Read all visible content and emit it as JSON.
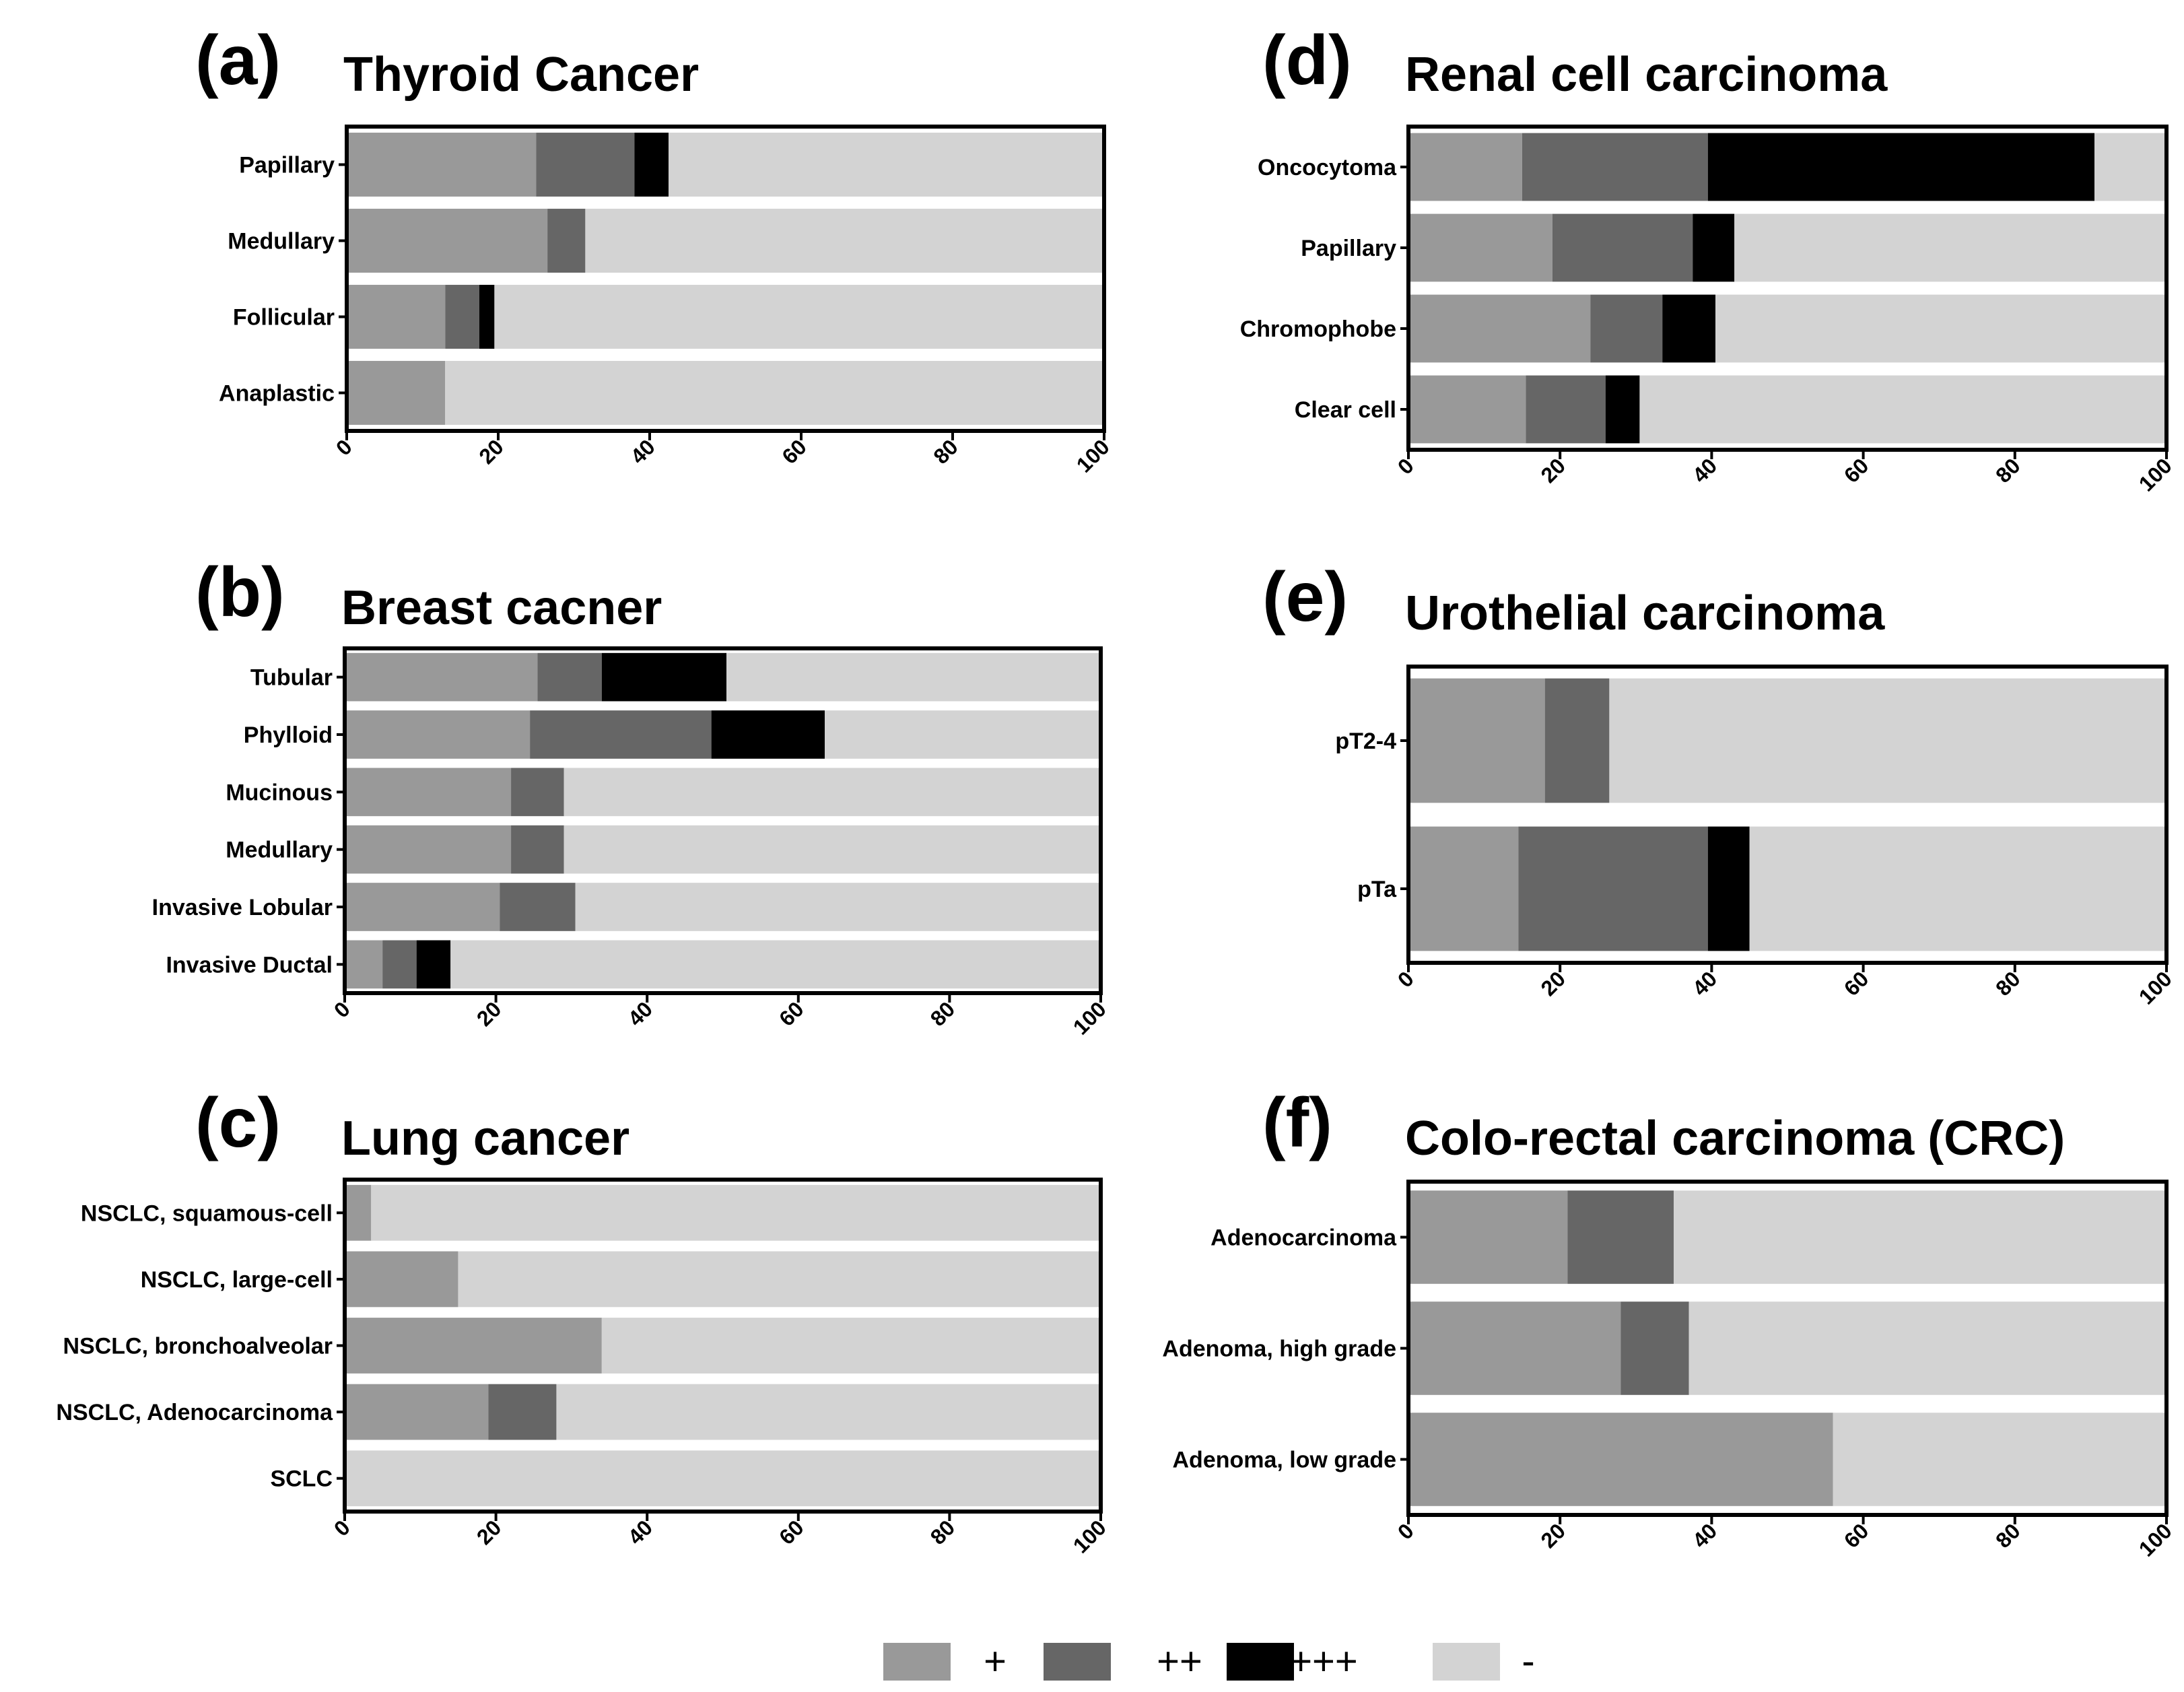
{
  "legend": {
    "items": [
      {
        "label": "+",
        "color": "#999999"
      },
      {
        "label": "++",
        "color": "#666666"
      },
      {
        "label": "+++",
        "color": "#000000"
      },
      {
        "label": "-",
        "color": "#d3d3d3"
      }
    ]
  },
  "chart_data": [
    {
      "id": "a",
      "letter": "(a)",
      "title": "Thyroid Cancer",
      "type": "bar",
      "orientation": "horizontal",
      "stacked": true,
      "xlim": [
        0,
        100
      ],
      "xticks": [
        "0",
        "20",
        "40",
        "60",
        "80",
        "100"
      ],
      "categories": [
        "Papillary",
        "Medullary",
        "Follicular",
        "Anaplastic"
      ],
      "series": [
        {
          "name": "+",
          "values": [
            25,
            26.5,
            13,
            13
          ]
        },
        {
          "name": "++",
          "values": [
            13,
            5,
            4.5,
            0
          ]
        },
        {
          "name": "+++",
          "values": [
            4.5,
            0,
            2,
            0
          ]
        },
        {
          "name": "-",
          "values": [
            57.5,
            68.5,
            80.5,
            87
          ]
        }
      ]
    },
    {
      "id": "b",
      "letter": "(b)",
      "title": "Breast cacner",
      "type": "bar",
      "orientation": "horizontal",
      "stacked": true,
      "xlim": [
        0,
        100
      ],
      "xticks": [
        "0",
        "20",
        "40",
        "60",
        "80",
        "100"
      ],
      "categories": [
        "Tubular",
        "Phylloid",
        "Mucinous",
        "Medullary",
        "Invasive Lobular",
        "Invasive Ductal"
      ],
      "series": [
        {
          "name": "+",
          "values": [
            25.5,
            24.5,
            22,
            22,
            20.5,
            5
          ]
        },
        {
          "name": "++",
          "values": [
            8.5,
            24,
            7,
            7,
            10,
            4.5
          ]
        },
        {
          "name": "+++",
          "values": [
            16.5,
            15,
            0,
            0,
            0,
            4.5
          ]
        },
        {
          "name": "-",
          "values": [
            49.5,
            36.5,
            71,
            71,
            69.5,
            86
          ]
        }
      ]
    },
    {
      "id": "c",
      "letter": "(c)",
      "title": "Lung cancer",
      "type": "bar",
      "orientation": "horizontal",
      "stacked": true,
      "xlim": [
        0,
        100
      ],
      "xticks": [
        "0",
        "20",
        "40",
        "60",
        "80",
        "100"
      ],
      "categories": [
        "NSCLC, squamous-cell",
        "NSCLC, large-cell",
        "NSCLC, bronchoalveolar",
        "NSCLC, Adenocarcinoma",
        "SCLC"
      ],
      "series": [
        {
          "name": "+",
          "values": [
            3.5,
            15,
            34,
            19,
            0
          ]
        },
        {
          "name": "++",
          "values": [
            0,
            0,
            0,
            9,
            0
          ]
        },
        {
          "name": "+++",
          "values": [
            0,
            0,
            0,
            0,
            0
          ]
        },
        {
          "name": "-",
          "values": [
            96.5,
            85,
            66,
            72,
            100
          ]
        }
      ]
    },
    {
      "id": "d",
      "letter": "(d)",
      "title": "Renal cell carcinoma",
      "type": "bar",
      "orientation": "horizontal",
      "stacked": true,
      "xlim": [
        0,
        100
      ],
      "xticks": [
        "0",
        "20",
        "40",
        "60",
        "80",
        "100"
      ],
      "categories": [
        "Oncocytoma",
        "Papillary",
        "Chromophobe",
        "Clear cell"
      ],
      "series": [
        {
          "name": "+",
          "values": [
            15,
            19,
            24,
            15.5
          ]
        },
        {
          "name": "++",
          "values": [
            24.5,
            18.5,
            9.5,
            10.5
          ]
        },
        {
          "name": "+++",
          "values": [
            51,
            5.5,
            7,
            4.5
          ]
        },
        {
          "name": "-",
          "values": [
            9.5,
            57,
            59.5,
            69.5
          ]
        }
      ]
    },
    {
      "id": "e",
      "letter": "(e)",
      "title": "Urothelial carcinoma",
      "type": "bar",
      "orientation": "horizontal",
      "stacked": true,
      "xlim": [
        0,
        100
      ],
      "xticks": [
        "0",
        "20",
        "40",
        "60",
        "80",
        "100"
      ],
      "categories": [
        "pT2-4",
        "pTa"
      ],
      "series": [
        {
          "name": "+",
          "values": [
            18,
            14.5
          ]
        },
        {
          "name": "++",
          "values": [
            8.5,
            25
          ]
        },
        {
          "name": "+++",
          "values": [
            0,
            5.5
          ]
        },
        {
          "name": "-",
          "values": [
            73.5,
            55
          ]
        }
      ]
    },
    {
      "id": "f",
      "letter": "(f)",
      "title": "Colo-rectal carcinoma (CRC)",
      "type": "bar",
      "orientation": "horizontal",
      "stacked": true,
      "xlim": [
        0,
        100
      ],
      "xticks": [
        "0",
        "20",
        "40",
        "60",
        "80",
        "100"
      ],
      "categories": [
        "Adenocarcinoma",
        "Adenoma, high grade",
        "Adenoma, low grade"
      ],
      "series": [
        {
          "name": "+",
          "values": [
            21,
            28,
            56
          ]
        },
        {
          "name": "++",
          "values": [
            14,
            9,
            0
          ]
        },
        {
          "name": "+++",
          "values": [
            0,
            0,
            0
          ]
        },
        {
          "name": "-",
          "values": [
            65,
            63,
            44
          ]
        }
      ]
    }
  ]
}
